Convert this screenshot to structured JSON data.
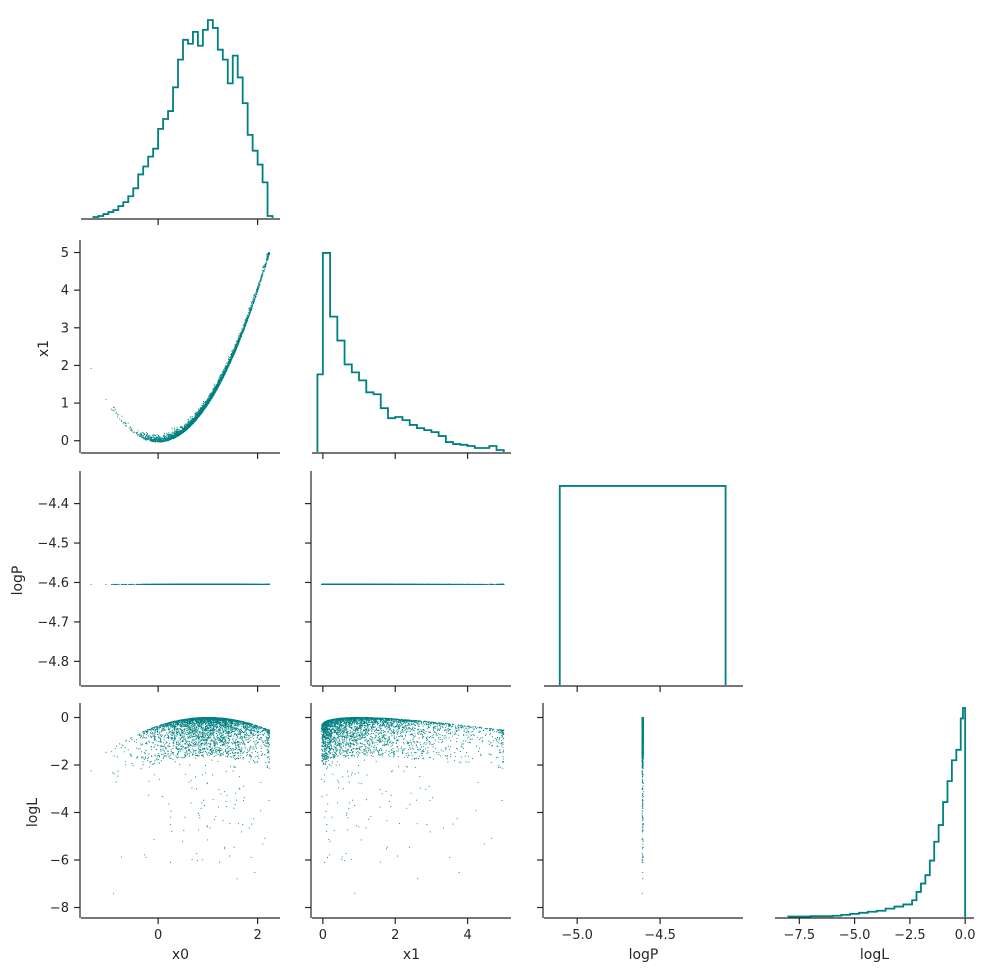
{
  "chart_data": {
    "type": "corner-plot",
    "color": "#008080",
    "axis_color": "#262626",
    "variables": [
      "x0",
      "x1",
      "logP",
      "logL"
    ],
    "panels": [
      {
        "id": "hist-x0",
        "row": 0,
        "col": 0,
        "type": "histogram",
        "variable": "x0",
        "xlim": [
          -1.55,
          2.45
        ],
        "ylim": [
          0,
          1.0
        ],
        "xticks": [
          0,
          2
        ],
        "xtick_labels": [
          "",
          ""
        ],
        "show_y_axis": false,
        "bin_edges": [
          -1.3,
          -1.2,
          -1.1,
          -1.0,
          -0.9,
          -0.8,
          -0.7,
          -0.6,
          -0.5,
          -0.4,
          -0.3,
          -0.2,
          -0.1,
          0.0,
          0.1,
          0.2,
          0.3,
          0.4,
          0.5,
          0.6,
          0.7,
          0.8,
          0.9,
          1.0,
          1.1,
          1.2,
          1.3,
          1.4,
          1.5,
          1.6,
          1.7,
          1.8,
          1.9,
          2.0,
          2.1,
          2.2,
          2.3
        ],
        "counts": [
          0.005,
          0.01,
          0.02,
          0.03,
          0.04,
          0.06,
          0.08,
          0.11,
          0.15,
          0.22,
          0.26,
          0.31,
          0.35,
          0.45,
          0.5,
          0.54,
          0.66,
          0.8,
          0.9,
          0.88,
          0.94,
          0.87,
          0.95,
          1.0,
          0.96,
          0.85,
          0.8,
          0.68,
          0.82,
          0.71,
          0.58,
          0.42,
          0.34,
          0.27,
          0.18,
          0.01
        ]
      },
      {
        "id": "scatter-x0-x1",
        "row": 1,
        "col": 0,
        "type": "scatter",
        "x": "x0",
        "y": "x1",
        "xlim": [
          -1.55,
          2.45
        ],
        "ylim": [
          -0.3,
          5.2
        ],
        "xticks": [
          0,
          2
        ],
        "xtick_labels": [
          "",
          ""
        ],
        "yticks": [
          0,
          1,
          2,
          3,
          4,
          5
        ],
        "ytick_labels": [
          "0",
          "1",
          "2",
          "3",
          "4",
          "5"
        ],
        "ylabel": "x1",
        "density_curve": "y = x^2 plus small positive noise, concentrated around x from 0.3 to 2.2"
      },
      {
        "id": "hist-x1",
        "row": 1,
        "col": 1,
        "type": "histogram",
        "variable": "x1",
        "xlim": [
          -0.3,
          5.2
        ],
        "ylim": [
          0,
          5.2
        ],
        "xticks": [
          0,
          2,
          4
        ],
        "xtick_labels": [
          "",
          "",
          ""
        ],
        "show_y_axis": false,
        "bin_edges": [
          -0.15,
          0.0,
          0.1,
          0.2,
          0.4,
          0.6,
          0.8,
          1.0,
          1.2,
          1.4,
          1.6,
          1.8,
          2.0,
          2.2,
          2.4,
          2.6,
          2.8,
          3.0,
          3.2,
          3.4,
          3.6,
          3.8,
          4.0,
          4.2,
          4.4,
          4.6,
          4.8,
          5.0
        ],
        "counts": [
          1.95,
          5.0,
          5.0,
          3.4,
          2.8,
          2.2,
          2.0,
          1.8,
          1.5,
          1.45,
          1.1,
          0.85,
          0.88,
          0.8,
          0.68,
          0.6,
          0.55,
          0.5,
          0.4,
          0.25,
          0.2,
          0.18,
          0.15,
          0.1,
          0.1,
          0.15,
          0.05
        ]
      },
      {
        "id": "scatter-x0-logP",
        "row": 2,
        "col": 0,
        "type": "scatter",
        "x": "x0",
        "y": "logP",
        "xlim": [
          -1.55,
          2.45
        ],
        "ylim": [
          -4.86,
          -4.33
        ],
        "xticks": [
          0,
          2
        ],
        "xtick_labels": [
          "",
          ""
        ],
        "yticks": [
          -4.8,
          -4.7,
          -4.6,
          -4.5,
          -4.4
        ],
        "ytick_labels": [
          "−4.8",
          "−4.7",
          "−4.6",
          "−4.5",
          "−4.4"
        ],
        "ylabel": "logP",
        "constant_y": -4.605,
        "x_range": [
          -1.35,
          2.25
        ]
      },
      {
        "id": "scatter-x1-logP",
        "row": 2,
        "col": 1,
        "type": "scatter",
        "x": "x1",
        "y": "logP",
        "xlim": [
          -0.3,
          5.2
        ],
        "ylim": [
          -4.86,
          -4.33
        ],
        "xticks": [
          0,
          2,
          4
        ],
        "xtick_labels": [
          "",
          "",
          ""
        ],
        "show_ytick_labels": false,
        "yticks": [
          -4.8,
          -4.7,
          -4.6,
          -4.5,
          -4.4
        ],
        "constant_y": -4.605,
        "x_range": [
          -0.12,
          5.0
        ]
      },
      {
        "id": "hist-logP",
        "row": 2,
        "col": 2,
        "type": "histogram",
        "variable": "logP",
        "xlim": [
          -5.2,
          -4.0
        ],
        "ylim": [
          0,
          1.05
        ],
        "xticks": [
          -5.0,
          -4.5
        ],
        "xtick_labels": [
          "",
          ""
        ],
        "show_y_axis": false,
        "bin_edges": [
          -5.105,
          -4.105
        ],
        "counts": [
          1.0
        ]
      },
      {
        "id": "scatter-x0-logL",
        "row": 3,
        "col": 0,
        "type": "scatter",
        "x": "x0",
        "y": "logL",
        "xlim": [
          -1.55,
          2.45
        ],
        "ylim": [
          -8.4,
          0.4
        ],
        "xticks": [
          0,
          2
        ],
        "xtick_labels": [
          "0",
          "2"
        ],
        "xlabel": "x0",
        "yticks": [
          -8,
          -6,
          -4,
          -2,
          0
        ],
        "ytick_labels": [
          "−8",
          "−6",
          "−4",
          "−2",
          "0"
        ],
        "ylabel": "logL",
        "density_curve": "upper envelope logL = -0.5*((x0-1)^2 + (x1-x0^2)^2 scaled), dense band near 0 to -2, sparse tail to -8"
      },
      {
        "id": "scatter-x1-logL",
        "row": 3,
        "col": 1,
        "type": "scatter",
        "x": "x1",
        "y": "logL",
        "xlim": [
          -0.3,
          5.2
        ],
        "ylim": [
          -8.4,
          0.4
        ],
        "xticks": [
          0,
          2,
          4
        ],
        "xtick_labels": [
          "0",
          "2",
          "4"
        ],
        "xlabel": "x1",
        "yticks": [
          -8,
          -6,
          -4,
          -2,
          0
        ],
        "show_ytick_labels": false
      },
      {
        "id": "scatter-logP-logL",
        "row": 3,
        "col": 2,
        "type": "scatter",
        "x": "logP",
        "y": "logL",
        "xlim": [
          -5.2,
          -4.0
        ],
        "ylim": [
          -8.4,
          0.4
        ],
        "xticks": [
          -5.0,
          -4.5
        ],
        "xtick_labels": [
          "−5.0",
          "−4.5"
        ],
        "xlabel": "logP",
        "yticks": [
          -8,
          -6,
          -4,
          -2,
          0
        ],
        "show_ytick_labels": false,
        "constant_x": -4.605
      },
      {
        "id": "hist-logL",
        "row": 3,
        "col": 3,
        "type": "histogram",
        "variable": "logL",
        "xlim": [
          -8.6,
          0.4
        ],
        "ylim": [
          0,
          1.0
        ],
        "xticks": [
          -7.5,
          -5.0,
          -2.5,
          0.0
        ],
        "xtick_labels": [
          "−7.5",
          "−5.0",
          "−2.5",
          "0.0"
        ],
        "xlabel": "logL",
        "show_y_axis": false,
        "bin_edges": [
          -8.0,
          -7.0,
          -6.0,
          -5.6,
          -5.2,
          -4.8,
          -4.4,
          -4.0,
          -3.6,
          -3.2,
          -2.8,
          -2.4,
          -2.2,
          -2.0,
          -1.8,
          -1.6,
          -1.4,
          -1.2,
          -1.0,
          -0.8,
          -0.6,
          -0.4,
          -0.2,
          -0.1,
          0.0
        ],
        "counts": [
          0.002,
          0.004,
          0.006,
          0.01,
          0.015,
          0.02,
          0.025,
          0.03,
          0.04,
          0.05,
          0.06,
          0.08,
          0.12,
          0.16,
          0.2,
          0.27,
          0.36,
          0.44,
          0.55,
          0.65,
          0.75,
          0.8,
          0.95,
          1.0
        ]
      }
    ]
  }
}
